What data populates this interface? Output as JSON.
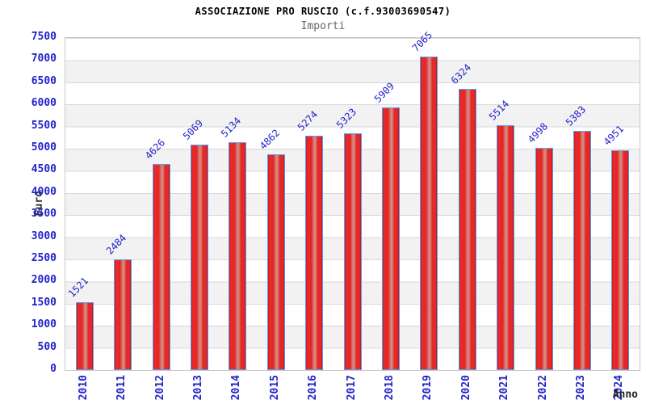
{
  "chart_data": {
    "type": "bar",
    "title": "ASSOCIAZIONE PRO RUSCIO (c.f.93003690547)",
    "subtitle": "Importi",
    "xlabel": "Anno",
    "ylabel": "Euro",
    "categories": [
      "2010",
      "2011",
      "2012",
      "2013",
      "2014",
      "2015",
      "2016",
      "2017",
      "2018",
      "2019",
      "2020",
      "2021",
      "2022",
      "2023",
      "2024"
    ],
    "values": [
      1521,
      2484,
      4626,
      5069,
      5134,
      4862,
      5274,
      5323,
      5909,
      7065,
      6324,
      5514,
      4998,
      5383,
      4951
    ],
    "ylim": [
      0,
      7500
    ],
    "ytick_step": 500,
    "grid": true,
    "legend": "none",
    "band_fill": "alternating horizontal bands",
    "colors": {
      "bar_fill": "#e32424",
      "bar_highlight": "#d2968c",
      "bar_border": "#5a9cf0",
      "tick_text": "#2222cc",
      "value_text": "#2222cc",
      "axis_title_text": "#333333",
      "title_text": "#000000",
      "subtitle_text": "#666666",
      "band": "#f2f2f2",
      "grid_line": "#d8d8d8",
      "plot_border": "#c8c8c8"
    }
  }
}
